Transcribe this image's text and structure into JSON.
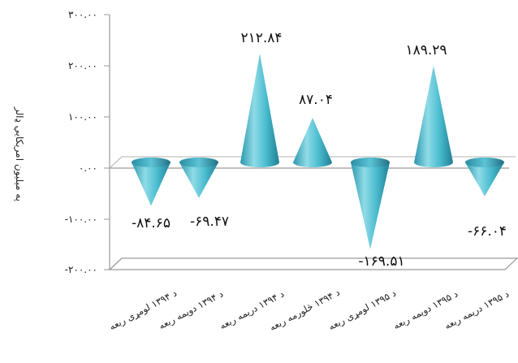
{
  "chart_data": {
    "type": "bar",
    "style": "3d-cone",
    "title": "",
    "xlabel": "",
    "ylabel": "په میلیون امریکایي ډالر",
    "ylim": [
      -200,
      300
    ],
    "yticks": [
      "۳۰۰.۰۰",
      "۲۰۰.۰۰",
      "۱۰۰.۰۰",
      "۰.۰۰",
      "-۱۰۰.۰۰",
      "-۲۰۰.۰۰"
    ],
    "ytick_values": [
      300,
      200,
      100,
      0,
      -100,
      -200
    ],
    "categories": [
      "د ۱۳۹۴ لومړی ربعه",
      "د ۱۳۹۴ دویمه ربعه",
      "د ۱۳۹۴ دریمه ربعه",
      "د ۱۳۹۴ څلورمه ربعه",
      "د ۱۳۹۵ لومړی ربعه",
      "د ۱۳۹۵ دویمه ربعه",
      "د ۱۳۹۵ دریمه ربعه"
    ],
    "values": [
      -84.65,
      -69.47,
      212.84,
      87.04,
      -169.51,
      189.29,
      -66.04
    ],
    "data_labels": [
      "-۸۴.۶۵",
      "-۶۹.۴۷",
      "۲۱۲.۸۴",
      "۸۷.۰۴",
      "-۱۶۹.۵۱",
      "۱۸۹.۲۹",
      "-۶۶.۰۴"
    ],
    "colors": {
      "cone_light": "#7fd3e0",
      "cone_mid": "#3fb3c8",
      "cone_dark": "#1f7f94",
      "base": "#2f8aa0"
    },
    "grid": false,
    "legend": "none"
  }
}
